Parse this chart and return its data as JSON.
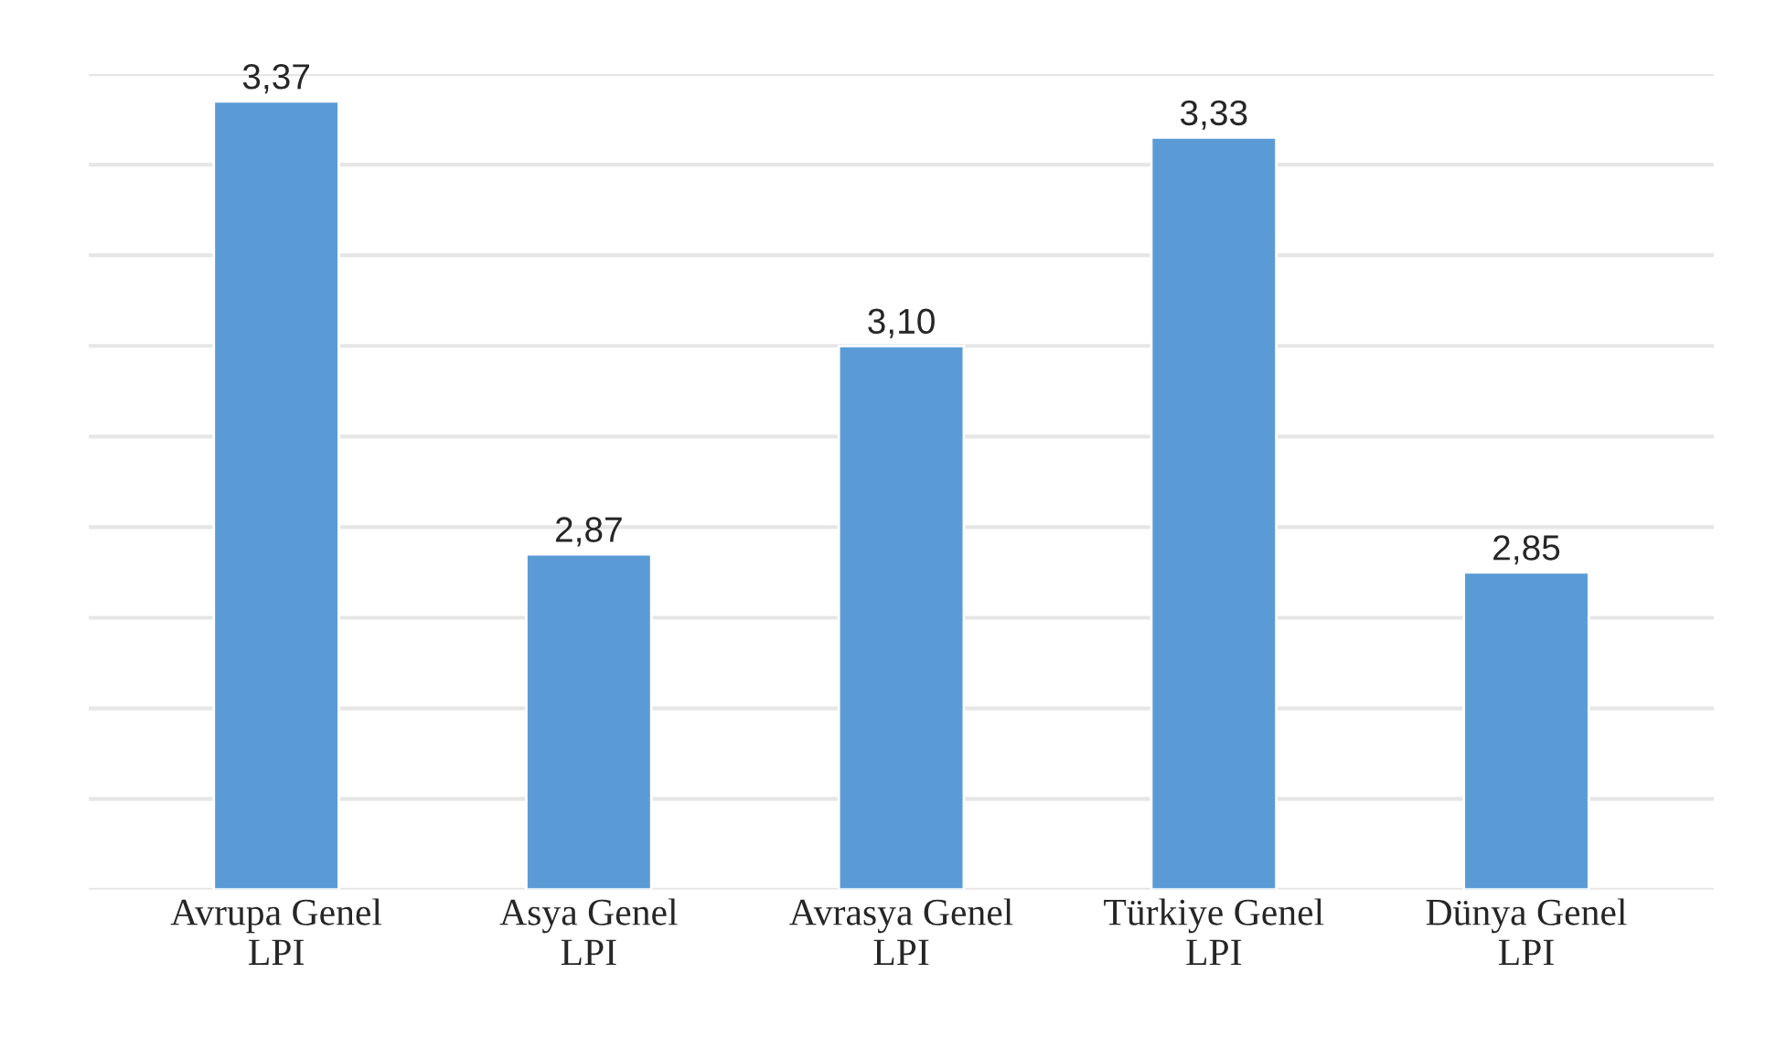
{
  "chart_data": {
    "type": "bar",
    "categories": [
      "Avrupa Genel\nLPI",
      "Asya Genel\nLPI",
      "Avrasya Genel\nLPI",
      "Türkiye Genel\nLPI",
      "Dünya Genel\nLPI"
    ],
    "values": [
      3.37,
      2.87,
      3.1,
      3.33,
      2.85
    ],
    "value_labels": [
      "3,37",
      "2,87",
      "3,10",
      "3,33",
      "2,85"
    ],
    "color": "#5b9bd5",
    "ylim": [
      2.5,
      3.4
    ],
    "yticks": [
      {
        "value": 2.5,
        "label": null
      },
      {
        "value": 2.6,
        "label": null
      },
      {
        "value": 2.7,
        "label": null
      },
      {
        "value": 2.8,
        "label": null
      },
      {
        "value": 2.9,
        "label": null
      },
      {
        "value": 3.0,
        "label": null
      },
      {
        "value": 3.1,
        "label": null
      },
      {
        "value": 3.2,
        "label": null
      },
      {
        "value": 3.3,
        "label": null
      },
      {
        "value": 3.4,
        "label": null
      }
    ],
    "grid": "y",
    "tick_labels": "x"
  }
}
